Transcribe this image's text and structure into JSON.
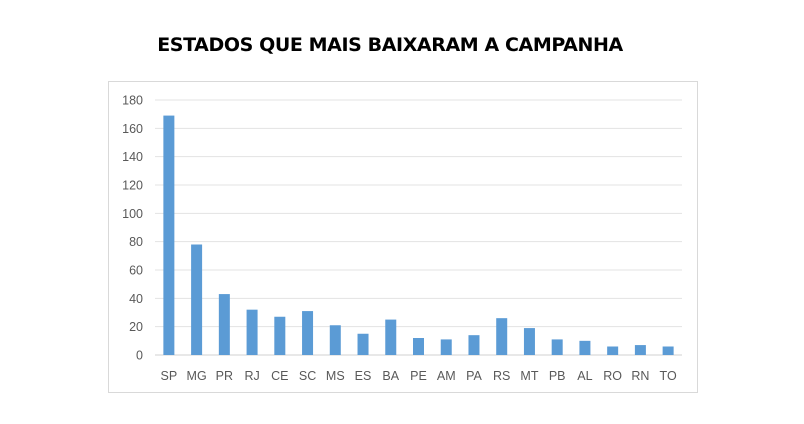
{
  "title": "ESTADOS QUE MAIS BAIXARAM A CAMPANHA",
  "chart_data": {
    "type": "bar",
    "categories": [
      "SP",
      "MG",
      "PR",
      "RJ",
      "CE",
      "SC",
      "MS",
      "ES",
      "BA",
      "PE",
      "AM",
      "PA",
      "RS",
      "MT",
      "PB",
      "AL",
      "RO",
      "RN",
      "TO"
    ],
    "values": [
      169,
      78,
      43,
      32,
      27,
      31,
      21,
      15,
      25,
      12,
      11,
      14,
      26,
      19,
      11,
      10,
      6,
      7,
      6
    ],
    "ylim": [
      0,
      180
    ],
    "yticks": [
      0,
      20,
      40,
      60,
      80,
      100,
      120,
      140,
      160,
      180
    ],
    "grid": true,
    "bar_color": "#5b9bd5"
  }
}
